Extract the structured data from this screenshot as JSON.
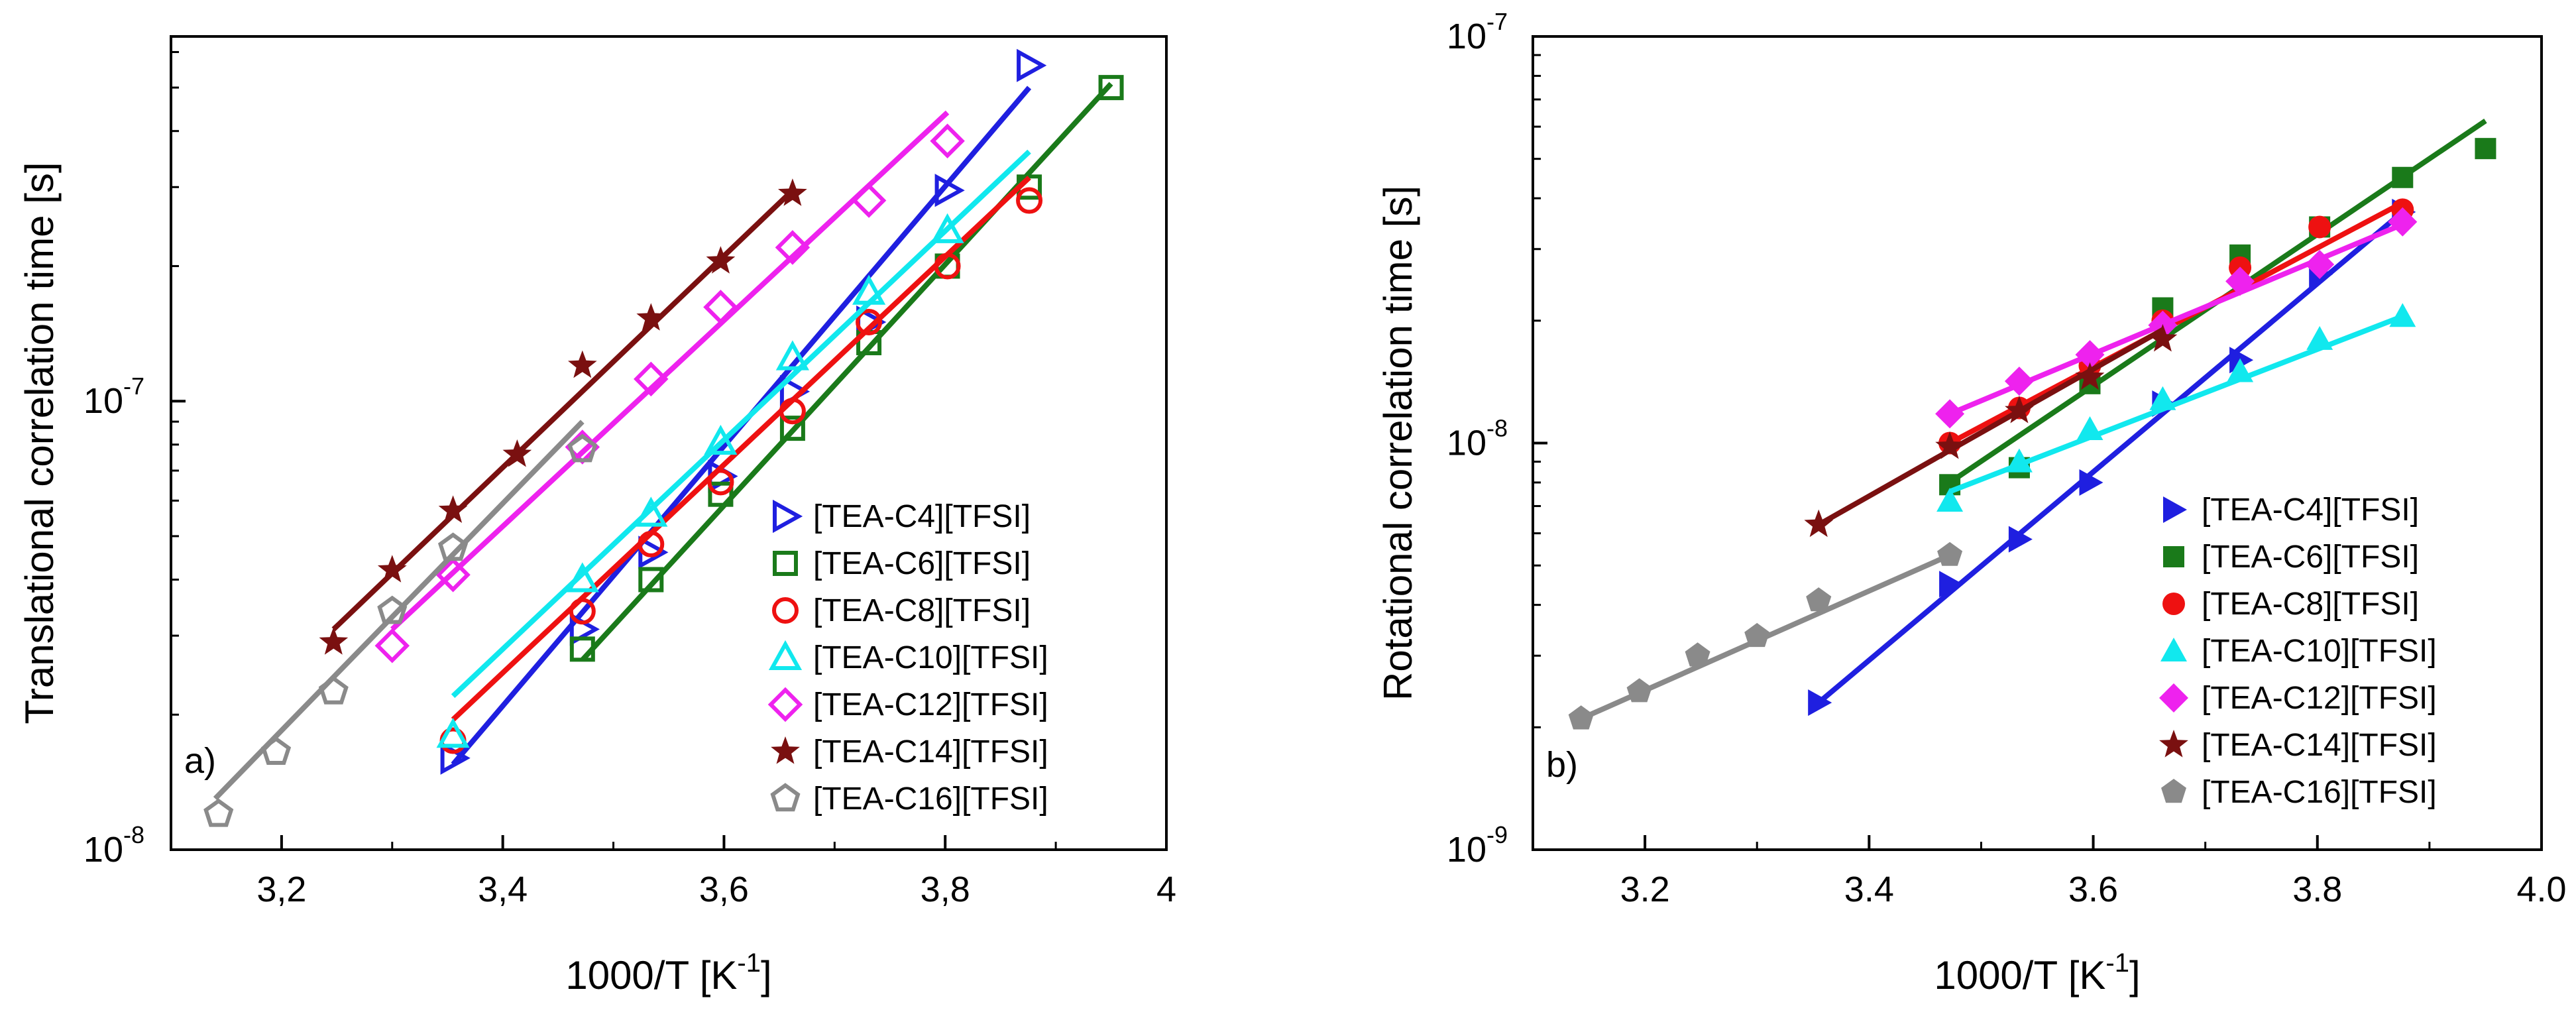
{
  "chart_data": [
    {
      "type": "scatter",
      "panel_label": "a)",
      "xlabel": {
        "main": "1000/T [K",
        "sup": "-1",
        "tail": "]"
      },
      "ylabel": "Translational correlation time [s]",
      "xlim": [
        3.1,
        4.0
      ],
      "ylim": [
        1e-08,
        6.5e-07
      ],
      "yscale": "log",
      "x_ticks": [
        {
          "v": 3.2,
          "label": "3,2"
        },
        {
          "v": 3.4,
          "label": "3,4"
        },
        {
          "v": 3.6,
          "label": "3,6"
        },
        {
          "v": 3.8,
          "label": "3,8"
        },
        {
          "v": 4.0,
          "label": "4"
        }
      ],
      "y_ticks": [
        {
          "v": 1e-08,
          "base": "10",
          "exp": "-8"
        },
        {
          "v": 1e-07,
          "base": "10",
          "exp": "-7"
        }
      ],
      "legend_position": "lower-right",
      "series": [
        {
          "name": "[TEA-C4][TFSI]",
          "color": "#1f1fe0",
          "marker": "triangle-right",
          "filled": false,
          "x": [
            3.355,
            3.472,
            3.534,
            3.597,
            3.662,
            3.731,
            3.802,
            3.876
          ],
          "y": [
            1.6e-08,
            3.1e-08,
            4.6e-08,
            6.8e-08,
            1.05e-07,
            1.5e-07,
            2.95e-07,
            5.6e-07
          ],
          "fit": [
            [
              3.355,
              1.55e-08
            ],
            [
              3.876,
              5e-07
            ]
          ]
        },
        {
          "name": "[TEA-C6][TFSI]",
          "color": "#1a7a1a",
          "marker": "square",
          "filled": false,
          "x": [
            3.472,
            3.534,
            3.597,
            3.662,
            3.731,
            3.802,
            3.876,
            3.95
          ],
          "y": [
            2.8e-08,
            4e-08,
            6.2e-08,
            8.7e-08,
            1.35e-07,
            2e-07,
            3e-07,
            5e-07
          ],
          "fit": [
            [
              3.472,
              2.65e-08
            ],
            [
              3.95,
              5.1e-07
            ]
          ]
        },
        {
          "name": "[TEA-C8][TFSI]",
          "color": "#ee1111",
          "marker": "circle",
          "filled": false,
          "x": [
            3.355,
            3.472,
            3.534,
            3.597,
            3.662,
            3.731,
            3.802,
            3.876
          ],
          "y": [
            1.75e-08,
            3.4e-08,
            4.8e-08,
            6.6e-08,
            9.5e-08,
            1.5e-07,
            2e-07,
            2.8e-07
          ],
          "fit": [
            [
              3.355,
              1.95e-08
            ],
            [
              3.876,
              3.15e-07
            ]
          ]
        },
        {
          "name": "[TEA-C10][TFSI]",
          "color": "#11e8ee",
          "marker": "triangle-up",
          "filled": false,
          "x": [
            3.355,
            3.472,
            3.534,
            3.597,
            3.662,
            3.731,
            3.802
          ],
          "y": [
            1.8e-08,
            4e-08,
            5.6e-08,
            8.1e-08,
            1.25e-07,
            1.75e-07,
            2.4e-07
          ],
          "fit": [
            [
              3.355,
              2.2e-08
            ],
            [
              3.876,
              3.6e-07
            ]
          ]
        },
        {
          "name": "[TEA-C12][TFSI]",
          "color": "#ee22ee",
          "marker": "diamond",
          "filled": false,
          "x": [
            3.3,
            3.355,
            3.472,
            3.534,
            3.597,
            3.662,
            3.731,
            3.802
          ],
          "y": [
            2.85e-08,
            4.1e-08,
            7.9e-08,
            1.12e-07,
            1.62e-07,
            2.2e-07,
            2.8e-07,
            3.8e-07
          ],
          "fit": [
            [
              3.3,
              3.1e-08
            ],
            [
              3.802,
              4.4e-07
            ]
          ]
        },
        {
          "name": "[TEA-C14][TFSI]",
          "color": "#7a1010",
          "marker": "star",
          "filled": true,
          "x": [
            3.247,
            3.3,
            3.355,
            3.413,
            3.472,
            3.534,
            3.597,
            3.662
          ],
          "y": [
            2.9e-08,
            4.2e-08,
            5.7e-08,
            7.6e-08,
            1.2e-07,
            1.53e-07,
            2.05e-07,
            2.9e-07
          ],
          "fit": [
            [
              3.247,
              3.1e-08
            ],
            [
              3.662,
              2.95e-07
            ]
          ]
        },
        {
          "name": "[TEA-C16][TFSI]",
          "color": "#8a8a8a",
          "marker": "pentagon",
          "filled": false,
          "x": [
            3.143,
            3.195,
            3.247,
            3.3,
            3.355,
            3.472
          ],
          "y": [
            1.2e-08,
            1.65e-08,
            2.25e-08,
            3.4e-08,
            4.7e-08,
            7.8e-08
          ],
          "fit": [
            [
              3.14,
              1.3e-08
            ],
            [
              3.472,
              9e-08
            ]
          ]
        }
      ]
    },
    {
      "type": "scatter",
      "panel_label": "b)",
      "xlabel": {
        "main": "1000/T [K",
        "sup": "-1",
        "tail": "]"
      },
      "ylabel": "Rotational correlation time [s]",
      "xlim": [
        3.1,
        4.0
      ],
      "ylim": [
        1e-09,
        1e-07
      ],
      "yscale": "log",
      "x_ticks": [
        {
          "v": 3.2,
          "label": "3.2"
        },
        {
          "v": 3.4,
          "label": "3.4"
        },
        {
          "v": 3.6,
          "label": "3.6"
        },
        {
          "v": 3.8,
          "label": "3.8"
        },
        {
          "v": 4.0,
          "label": "4.0"
        }
      ],
      "y_ticks": [
        {
          "v": 1e-09,
          "base": "10",
          "exp": "-9"
        },
        {
          "v": 1e-08,
          "base": "10",
          "exp": "-8"
        },
        {
          "v": 1e-07,
          "base": "10",
          "exp": "-7"
        }
      ],
      "legend_position": "lower-right",
      "series": [
        {
          "name": "[TEA-C4][TFSI]",
          "color": "#1f1fe0",
          "marker": "triangle-right",
          "filled": true,
          "x": [
            3.355,
            3.472,
            3.534,
            3.597,
            3.662,
            3.731,
            3.802,
            3.876
          ],
          "y": [
            2.3e-09,
            4.5e-09,
            5.8e-09,
            8e-09,
            1.25e-08,
            1.6e-08,
            2.6e-08,
            3.7e-08
          ],
          "fit": [
            [
              3.355,
              2.3e-09
            ],
            [
              3.876,
              3.7e-08
            ]
          ]
        },
        {
          "name": "[TEA-C6][TFSI]",
          "color": "#1a7a1a",
          "marker": "square",
          "filled": true,
          "x": [
            3.472,
            3.534,
            3.597,
            3.662,
            3.731,
            3.802,
            3.876,
            3.95
          ],
          "y": [
            7.9e-09,
            8.7e-09,
            1.4e-08,
            2.15e-08,
            2.9e-08,
            3.4e-08,
            4.5e-08,
            5.3e-08
          ],
          "fit": [
            [
              3.472,
              8e-09
            ],
            [
              3.95,
              6.2e-08
            ]
          ]
        },
        {
          "name": "[TEA-C8][TFSI]",
          "color": "#ee1111",
          "marker": "circle",
          "filled": true,
          "x": [
            3.472,
            3.534,
            3.597,
            3.662,
            3.731,
            3.802,
            3.876
          ],
          "y": [
            1e-08,
            1.22e-08,
            1.55e-08,
            2e-08,
            2.7e-08,
            3.4e-08,
            3.75e-08
          ],
          "fit": [
            [
              3.472,
              1e-08
            ],
            [
              3.876,
              3.9e-08
            ]
          ]
        },
        {
          "name": "[TEA-C10][TFSI]",
          "color": "#11e8ee",
          "marker": "triangle-up",
          "filled": true,
          "x": [
            3.472,
            3.534,
            3.597,
            3.662,
            3.731,
            3.802,
            3.876
          ],
          "y": [
            7.2e-09,
            9e-09,
            1.08e-08,
            1.28e-08,
            1.5e-08,
            1.8e-08,
            2.05e-08
          ],
          "fit": [
            [
              3.472,
              7.6e-09
            ],
            [
              3.876,
              2.05e-08
            ]
          ]
        },
        {
          "name": "[TEA-C12][TFSI]",
          "color": "#ee22ee",
          "marker": "diamond",
          "filled": true,
          "x": [
            3.472,
            3.534,
            3.597,
            3.662,
            3.731,
            3.802,
            3.876
          ],
          "y": [
            1.18e-08,
            1.42e-08,
            1.65e-08,
            1.95e-08,
            2.5e-08,
            2.75e-08,
            3.5e-08
          ],
          "fit": [
            [
              3.472,
              1.18e-08
            ],
            [
              3.876,
              3.45e-08
            ]
          ]
        },
        {
          "name": "[TEA-C14][TFSI]",
          "color": "#7a1010",
          "marker": "star",
          "filled": true,
          "x": [
            3.355,
            3.472,
            3.534,
            3.597,
            3.662
          ],
          "y": [
            6.3e-09,
            9.8e-09,
            1.2e-08,
            1.45e-08,
            1.8e-08
          ],
          "fit": [
            [
              3.355,
              6.3e-09
            ],
            [
              3.662,
              1.9e-08
            ]
          ]
        },
        {
          "name": "[TEA-C16][TFSI]",
          "color": "#8a8a8a",
          "marker": "pentagon",
          "filled": true,
          "x": [
            3.143,
            3.195,
            3.247,
            3.3,
            3.355,
            3.472
          ],
          "y": [
            2.1e-09,
            2.45e-09,
            3e-09,
            3.35e-09,
            4.1e-09,
            5.3e-09
          ],
          "fit": [
            [
              3.143,
              2.1e-09
            ],
            [
              3.472,
              5.3e-09
            ]
          ]
        }
      ]
    }
  ]
}
